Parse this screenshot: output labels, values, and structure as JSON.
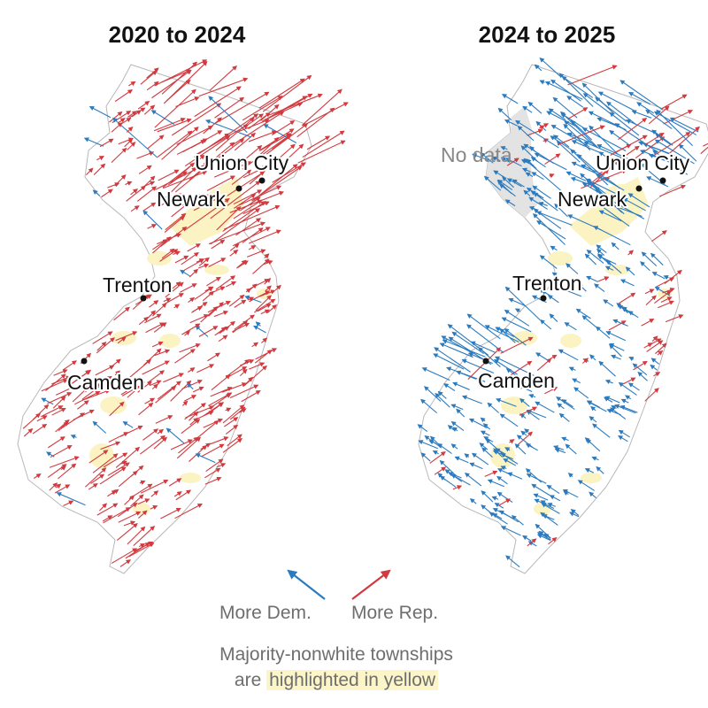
{
  "panels": [
    {
      "title": "2020 to 2024",
      "cities": [
        "Union City",
        "Newark",
        "Trenton",
        "Camden"
      ]
    },
    {
      "title": "2024 to 2025",
      "cities": [
        "Union City",
        "Newark",
        "Trenton",
        "Camden"
      ],
      "no_data_label": "No data"
    }
  ],
  "legend": {
    "dem_label": "More Dem.",
    "rep_label": "More Rep.",
    "note_line1": "Majority-nonwhite townships",
    "note_line2_prefix": "are",
    "note_line2_highlight": "highlighted in yellow"
  },
  "colors": {
    "dem": "#2c7bbf",
    "rep": "#d13a3f",
    "majority_nonwhite": "#fbf3c2",
    "no_data": "#e3e3e3"
  }
}
